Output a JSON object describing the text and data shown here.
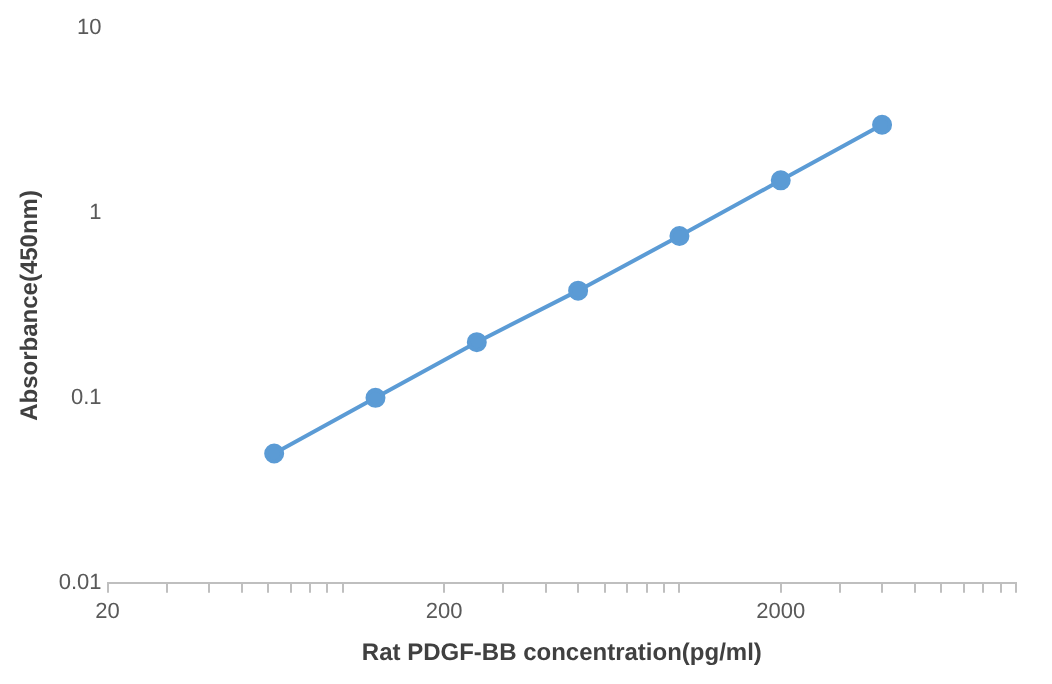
{
  "chart_data": {
    "type": "line",
    "xlabel": "Rat PDGF-BB concentration(pg/ml)",
    "ylabel": "Absorbance(450nm)",
    "log": "xy",
    "x": [
      62.5,
      125,
      250,
      500,
      1000,
      2000,
      4000
    ],
    "series": [
      {
        "color": "#5b9bd5",
        "values": [
          0.05,
          0.1,
          0.2,
          0.38,
          0.75,
          1.5,
          3
        ]
      }
    ],
    "xlim": [
      20,
      10000
    ],
    "xticks": [
      20,
      {
        "value": 30,
        "label": null
      },
      {
        "value": 40,
        "label": null
      },
      {
        "value": 50,
        "label": null
      },
      {
        "value": 60,
        "label": null
      },
      {
        "value": 70,
        "label": null
      },
      {
        "value": 80,
        "label": null
      },
      {
        "value": 90,
        "label": null
      },
      {
        "value": 100,
        "label": null
      },
      200,
      {
        "value": 300,
        "label": null
      },
      {
        "value": 400,
        "label": null
      },
      {
        "value": 500,
        "label": null
      },
      {
        "value": 600,
        "label": null
      },
      {
        "value": 700,
        "label": null
      },
      {
        "value": 800,
        "label": null
      },
      {
        "value": 900,
        "label": null
      },
      {
        "value": 1000,
        "label": null
      },
      2000,
      {
        "value": 3000,
        "label": null
      },
      {
        "value": 4000,
        "label": null
      },
      {
        "value": 5000,
        "label": null
      },
      {
        "value": 6000,
        "label": null
      },
      {
        "value": 7000,
        "label": null
      },
      {
        "value": 8000,
        "label": null
      },
      {
        "value": 9000,
        "label": null
      },
      {
        "value": 10000,
        "label": null
      }
    ],
    "ylim": [
      0.01,
      10
    ],
    "yticks": [
      0.01,
      0.1,
      1,
      10
    ],
    "grid": false,
    "legend": false,
    "marker": "circle",
    "line_style": "solid"
  }
}
